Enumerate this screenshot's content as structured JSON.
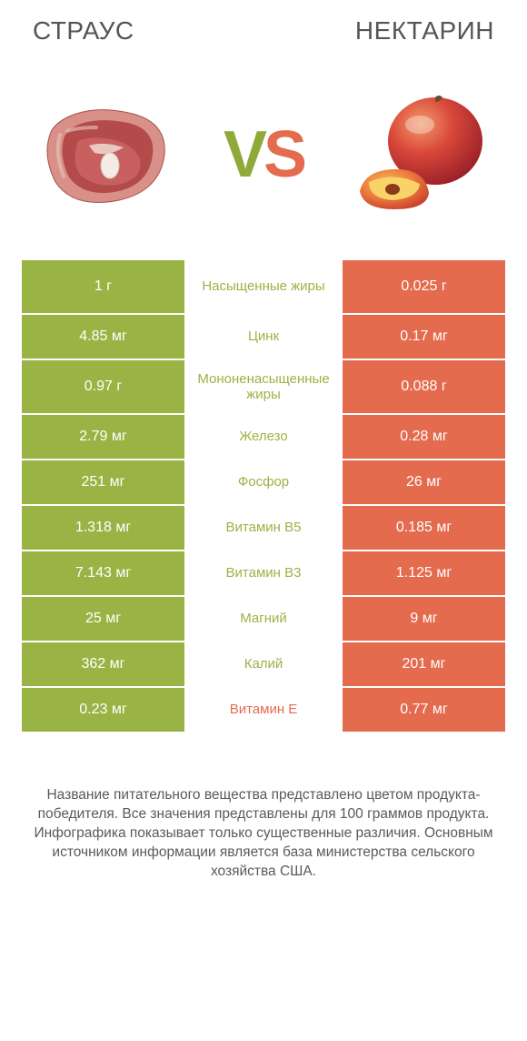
{
  "colors": {
    "left": "#99b444",
    "right": "#e46b4e",
    "text_muted": "#5a5a5a",
    "heading": "#555555",
    "bg": "#ffffff"
  },
  "heading": {
    "left": "СТРАУС",
    "right": "НЕКТАРИН"
  },
  "vs": {
    "v": "V",
    "s": "S"
  },
  "rows": [
    {
      "left": "1 г",
      "mid": "Насыщенные жиры",
      "right": "0.025 г",
      "winner": "left",
      "tall": true
    },
    {
      "left": "4.85 мг",
      "mid": "Цинк",
      "right": "0.17 мг",
      "winner": "left",
      "tall": false
    },
    {
      "left": "0.97 г",
      "mid": "Мононенасыщенные жиры",
      "right": "0.088 г",
      "winner": "left",
      "tall": true
    },
    {
      "left": "2.79 мг",
      "mid": "Железо",
      "right": "0.28 мг",
      "winner": "left",
      "tall": false
    },
    {
      "left": "251 мг",
      "mid": "Фосфор",
      "right": "26 мг",
      "winner": "left",
      "tall": false
    },
    {
      "left": "1.318 мг",
      "mid": "Витамин B5",
      "right": "0.185 мг",
      "winner": "left",
      "tall": false
    },
    {
      "left": "7.143 мг",
      "mid": "Витамин B3",
      "right": "1.125 мг",
      "winner": "left",
      "tall": false
    },
    {
      "left": "25 мг",
      "mid": "Магний",
      "right": "9 мг",
      "winner": "left",
      "tall": false
    },
    {
      "left": "362 мг",
      "mid": "Калий",
      "right": "201 мг",
      "winner": "left",
      "tall": false
    },
    {
      "left": "0.23 мг",
      "mid": "Витамин E",
      "right": "0.77 мг",
      "winner": "right",
      "tall": false
    }
  ],
  "footer_lines": [
    "Название питательного вещества представлено цветом продукта-победителя.",
    "Все значения представлены для 100 граммов продукта.",
    "Инфографика показывает только существенные различия.",
    "Основным источником информации является база министерства сельского хозяйства США."
  ]
}
